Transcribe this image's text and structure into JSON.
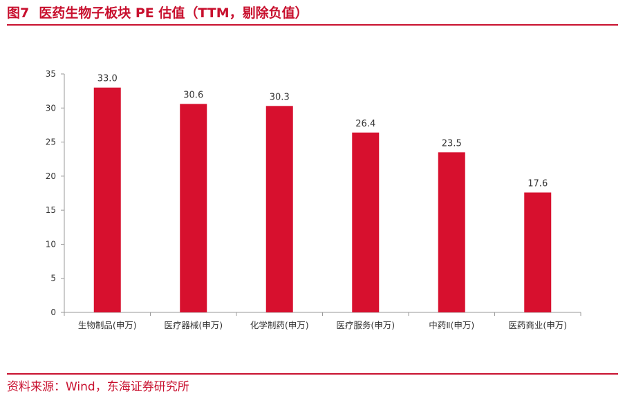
{
  "header": {
    "figure_number": "图7",
    "title": "医药生物子板块 PE 估值（TTM，剔除负值）"
  },
  "source": {
    "text": "资料来源：Wind，东海证券研究所"
  },
  "colors": {
    "accent": "#c8102e",
    "bar": "#d7102e",
    "axis": "#999999",
    "text": "#333333"
  },
  "chart_data": {
    "type": "bar",
    "title": "医药生物子板块 PE 估值（TTM，剔除负值）",
    "xlabel": "",
    "ylabel": "",
    "categories": [
      "生物制品(申万)",
      "医疗器械(申万)",
      "化学制药(申万)",
      "医疗服务(申万)",
      "中药Ⅱ(申万)",
      "医药商业(申万)"
    ],
    "values": [
      33.0,
      30.6,
      30.3,
      26.4,
      23.5,
      17.6
    ],
    "data_labels": [
      "33.0",
      "30.6",
      "30.3",
      "26.4",
      "23.5",
      "17.6"
    ],
    "ylim": [
      0,
      35
    ],
    "yticks": [
      0,
      5,
      10,
      15,
      20,
      25,
      30,
      35
    ],
    "grid": false,
    "legend": "none"
  }
}
